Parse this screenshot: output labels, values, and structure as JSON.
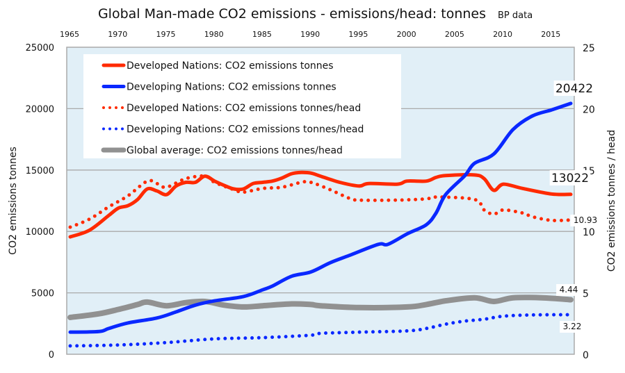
{
  "chart_data": {
    "type": "line",
    "title": "Global Man-made CO2 emissions - emissions/head:  tonnes",
    "subtitle": "BP data",
    "ylabel": "CO2 emissions tonnes",
    "y2label": "CO2 emissions  tonnes / head",
    "xlim": [
      1965,
      2017
    ],
    "ylim": [
      0,
      25000
    ],
    "y2lim": [
      0,
      25
    ],
    "grid": true,
    "legend_placement": "top-left",
    "background_color": "#e1eff7",
    "x_ticks": [
      "1965",
      "1970",
      "1975",
      "1980",
      "1985",
      "1990",
      "1995",
      "2000",
      "2005",
      "2010",
      "2015"
    ],
    "y_ticks": [
      "0",
      "5000",
      "10000",
      "15000",
      "20000",
      "25000"
    ],
    "y2_ticks": [
      "0",
      "5",
      "10",
      "15",
      "20",
      "25"
    ],
    "series": [
      {
        "name": "Developed Nations: CO2 emissions tonnes",
        "axis": "left",
        "color": "#ff2a00",
        "style": "solid",
        "x": [
          1965,
          1967,
          1969,
          1970,
          1971,
          1972,
          1973,
          1974,
          1975,
          1976,
          1977,
          1978,
          1979,
          1980,
          1981,
          1982,
          1983,
          1984,
          1985,
          1986,
          1987,
          1988,
          1989,
          1990,
          1991,
          1993,
          1995,
          1996,
          1999,
          2000,
          2002,
          2003,
          2004,
          2007,
          2008,
          2009,
          2010,
          2012,
          2015,
          2017
        ],
        "y": [
          9560,
          10100,
          11300,
          11900,
          12100,
          12600,
          13460,
          13300,
          13000,
          13700,
          14000,
          14000,
          14500,
          14100,
          13750,
          13460,
          13460,
          13900,
          14000,
          14100,
          14350,
          14700,
          14800,
          14750,
          14500,
          14000,
          13700,
          13900,
          13850,
          14100,
          14100,
          14400,
          14550,
          14600,
          14300,
          13350,
          13850,
          13500,
          13050,
          13022
        ],
        "end_label": "13022"
      },
      {
        "name": "Developing Nations: CO2 emissions tonnes",
        "axis": "left",
        "color": "#0a28ff",
        "style": "solid",
        "x": [
          1965,
          1968,
          1969,
          1971,
          1974,
          1976,
          1978,
          1980,
          1983,
          1985,
          1986,
          1988,
          1990,
          1992,
          1994,
          1997,
          1998,
          2000,
          2002,
          2003,
          2004,
          2006,
          2007,
          2009,
          2011,
          2013,
          2015,
          2017
        ],
        "y": [
          1800,
          1850,
          2100,
          2550,
          2950,
          3450,
          4000,
          4350,
          4700,
          5250,
          5550,
          6350,
          6700,
          7450,
          8050,
          8950,
          8950,
          9800,
          10550,
          11500,
          13000,
          14550,
          15550,
          16300,
          18300,
          19400,
          19900,
          20422
        ],
        "end_label": "20422"
      },
      {
        "name": "Developed Nations: CO2 emissions tonnes/head",
        "axis": "right",
        "color": "#ff2a00",
        "style": "dotted",
        "x": [
          1965,
          1967,
          1969,
          1971,
          1973,
          1974,
          1975,
          1977,
          1979,
          1980,
          1982,
          1983,
          1985,
          1987,
          1989,
          1990,
          1992,
          1994,
          1995,
          1999,
          2002,
          2003,
          2007,
          2008,
          2009,
          2010,
          2012,
          2013,
          2015,
          2017
        ],
        "y": [
          10.35,
          11.0,
          12.0,
          12.9,
          14.1,
          13.9,
          13.6,
          14.3,
          14.5,
          14.0,
          13.4,
          13.2,
          13.5,
          13.6,
          14.0,
          14.0,
          13.4,
          12.7,
          12.55,
          12.55,
          12.65,
          12.8,
          12.6,
          11.75,
          11.4,
          11.75,
          11.5,
          11.2,
          10.9,
          10.93
        ],
        "end_label": "10.93"
      },
      {
        "name": "Developing Nations: CO2 emissions tonnes/head",
        "axis": "right",
        "color": "#0a28ff",
        "style": "dotted",
        "x": [
          1965,
          1970,
          1975,
          1980,
          1985,
          1990,
          1991,
          1995,
          2000,
          2002,
          2004,
          2006,
          2008,
          2010,
          2013,
          2017
        ],
        "y": [
          0.68,
          0.75,
          0.95,
          1.25,
          1.35,
          1.55,
          1.7,
          1.8,
          1.9,
          2.1,
          2.45,
          2.7,
          2.85,
          3.1,
          3.2,
          3.22
        ],
        "end_label": "3.22"
      },
      {
        "name": "Global average:  CO2 emissions tonnes/head",
        "axis": "right",
        "color": "#919191",
        "style": "thick",
        "x": [
          1965,
          1968,
          1970,
          1972,
          1973,
          1975,
          1977,
          1979,
          1981,
          1983,
          1985,
          1988,
          1990,
          1991,
          1995,
          2000,
          2002,
          2004,
          2007,
          2009,
          2011,
          2014,
          2017
        ],
        "y": [
          3.0,
          3.3,
          3.65,
          4.05,
          4.25,
          3.95,
          4.2,
          4.3,
          4.0,
          3.85,
          3.95,
          4.1,
          4.05,
          3.95,
          3.8,
          3.85,
          4.05,
          4.35,
          4.6,
          4.3,
          4.6,
          4.6,
          4.44
        ],
        "end_label": "4.44"
      }
    ]
  }
}
